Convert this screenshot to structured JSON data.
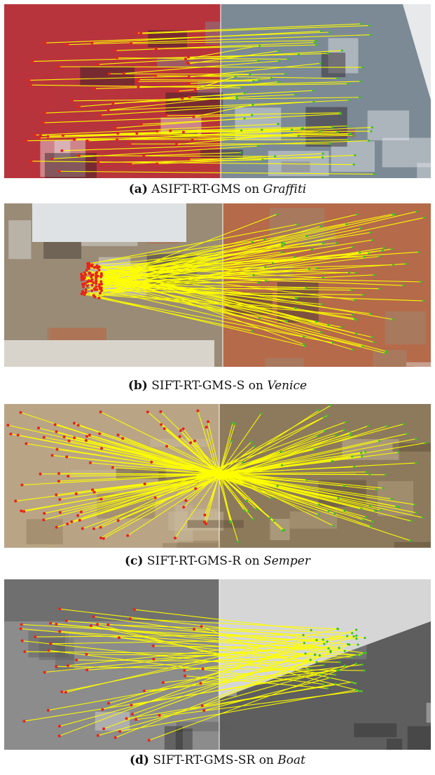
{
  "figures": [
    {
      "id": "a",
      "label": "(a)",
      "method": "ASIFT-RT-GMS",
      "connector": "on",
      "dataset": "Graffiti",
      "palette": {
        "bg": "#b8343c",
        "alt": "#7c8a96",
        "dark": "#2a1f24",
        "sky": "#e7e9ea"
      },
      "matches_style": "parallel"
    },
    {
      "id": "b",
      "label": "(b)",
      "method": "SIFT-RT-GMS-S",
      "connector": "on",
      "dataset": "Venice",
      "palette": {
        "bg": "#9a8b76",
        "alt": "#b56a4a",
        "dark": "#3b3630",
        "sky": "#dfe2e4"
      },
      "matches_style": "scale"
    },
    {
      "id": "c",
      "label": "(c)",
      "method": "SIFT-RT-GMS-R",
      "connector": "on",
      "dataset": "Semper",
      "palette": {
        "bg": "#b9a585",
        "alt": "#8d7a5c",
        "dark": "#5a4a36",
        "sky": "#cdbd9f"
      },
      "matches_style": "rotation"
    },
    {
      "id": "d",
      "label": "(d)",
      "method": "SIFT-RT-GMS-SR",
      "connector": "on",
      "dataset": "Boat",
      "palette": {
        "bg": "#8c8c8c",
        "alt": "#5e5e5e",
        "dark": "#2e2e2e",
        "sky": "#d6d6d6"
      },
      "matches_style": "scale-rotation"
    }
  ],
  "colors": {
    "match_line": "#ffff00",
    "left_point": "#e8231d",
    "right_point": "#39c12a"
  }
}
